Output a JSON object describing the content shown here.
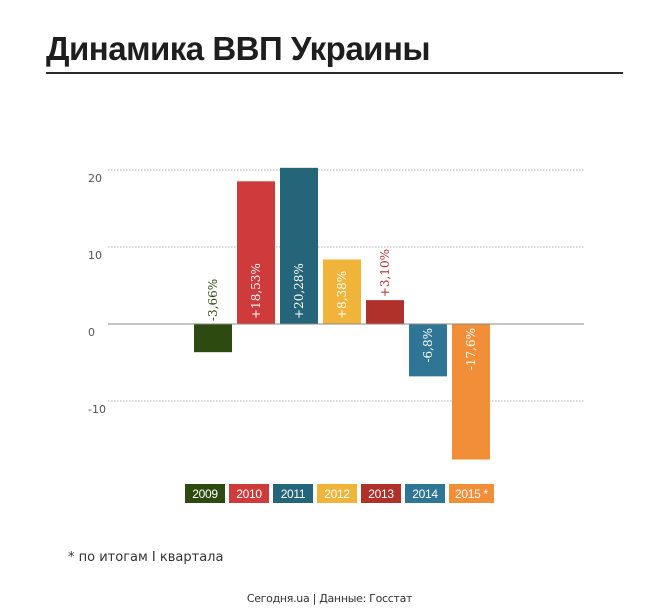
{
  "title": "Динамика ВВП Украины",
  "note": "* по итогам I квартала",
  "source": "Сегодня.ua | Данные: Госстат",
  "colors": {
    "2009": "#2d4a10",
    "2010": "#cf3a3a",
    "2011": "#24657a",
    "2012": "#f0b43a",
    "2013": "#b0302a",
    "2014": "#2f7596",
    "2015 *": "#f28d38",
    "grid": "#9a9a9a",
    "baseline": "#888888"
  },
  "chart_data": {
    "type": "bar",
    "title": "Динамика ВВП Украины",
    "xlabel": "",
    "ylabel": "",
    "ylim": [
      -17.6,
      20.28
    ],
    "yticks": [
      20,
      10,
      0,
      -10
    ],
    "ytick_labels": [
      "20",
      "10",
      "0",
      "-10"
    ],
    "grid": true,
    "legend_position": "bottom",
    "categories": [
      "2009",
      "2010",
      "2011",
      "2012",
      "2013",
      "2014",
      "2015 *"
    ],
    "values": [
      -3.66,
      18.53,
      20.28,
      8.38,
      3.1,
      -6.8,
      -17.6
    ],
    "labels": [
      "-3,66%",
      "+18,53%",
      "+20,28%",
      "+8,38%",
      "+3,10%",
      "-6,8%",
      "-17,6%"
    ]
  }
}
